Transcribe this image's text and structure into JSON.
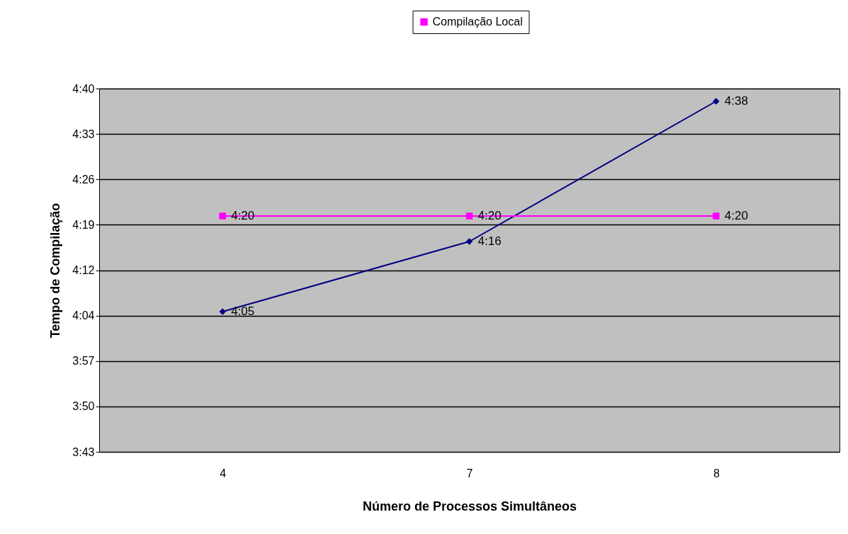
{
  "chart_data": {
    "type": "line",
    "xlabel": "Número de Processos Simultâneos",
    "ylabel": "Tempo de Compilação",
    "categories": [
      "4",
      "7",
      "8"
    ],
    "series": [
      {
        "color": "#000080",
        "marker": "diamond",
        "values": [
          245,
          256,
          278
        ],
        "value_labels": [
          "4:05",
          "4:16",
          "4:38"
        ]
      },
      {
        "name": "Compilação Local",
        "color": "#ff00ff",
        "marker": "square",
        "values": [
          260,
          260,
          260
        ],
        "value_labels": [
          "4:20",
          "4:20",
          "4:20"
        ]
      }
    ],
    "ylim": [
      223,
      280
    ],
    "yticks": [
      {
        "value": 223,
        "label": "3:43"
      },
      {
        "value": 230.125,
        "label": "3:50"
      },
      {
        "value": 237.25,
        "label": "3:57"
      },
      {
        "value": 244.375,
        "label": "4:04"
      },
      {
        "value": 251.5,
        "label": "4:12"
      },
      {
        "value": 258.625,
        "label": "4:19"
      },
      {
        "value": 265.75,
        "label": "4:26"
      },
      {
        "value": 272.875,
        "label": "4:33"
      },
      {
        "value": 280,
        "label": "4:40"
      }
    ],
    "grid": "y",
    "legend": "top"
  }
}
